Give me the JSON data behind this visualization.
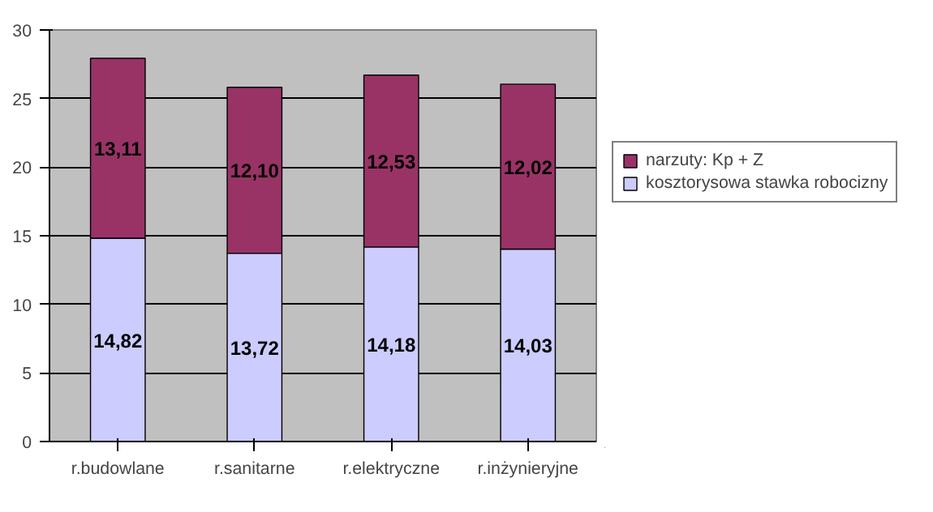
{
  "chart_data": {
    "type": "bar",
    "stacked": true,
    "categories": [
      "r.budowlane",
      "r.sanitarne",
      "r.elektryczne",
      "r.inżynieryjne"
    ],
    "series": [
      {
        "name": "kosztorysowa stawka robocizny",
        "color": "#ccccff",
        "values": [
          14.82,
          13.72,
          14.18,
          14.03
        ],
        "value_labels": [
          "14,82",
          "13,72",
          "14,18",
          "14,03"
        ]
      },
      {
        "name": "narzuty: Kp + Z",
        "color": "#993366",
        "values": [
          13.11,
          12.1,
          12.53,
          12.02
        ],
        "value_labels": [
          "13,11",
          "12,10",
          "12,53",
          "12,02"
        ]
      }
    ],
    "ylim": [
      0,
      30
    ],
    "yticks": [
      0,
      5,
      10,
      15,
      20,
      25,
      30
    ],
    "grid": "y",
    "legend": "right"
  }
}
